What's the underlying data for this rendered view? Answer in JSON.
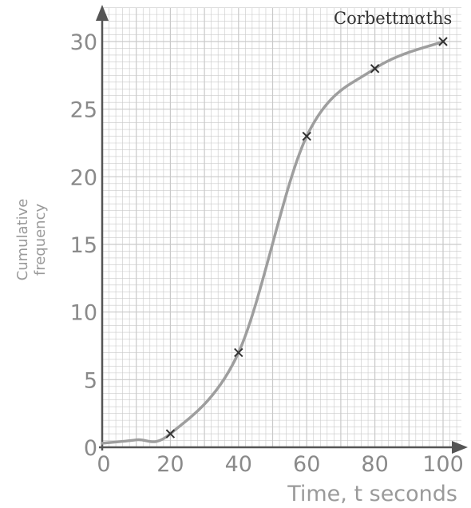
{
  "brand": "Corbettmαths",
  "chart_data": {
    "type": "line",
    "title": "",
    "xlabel": "Time, t seconds",
    "ylabel_line1": "Cumulative",
    "ylabel_line2": "frequency",
    "xlim": [
      0,
      100
    ],
    "ylim": [
      0,
      30
    ],
    "x_ticks": [
      0,
      20,
      40,
      60,
      80,
      100
    ],
    "x_tick_labels": [
      "0",
      "20",
      "40",
      "60",
      "80",
      "100"
    ],
    "y_ticks": [
      0,
      5,
      10,
      15,
      20,
      25,
      30
    ],
    "y_tick_labels": [
      "0",
      "5",
      "10",
      "15",
      "20",
      "25",
      "30"
    ],
    "grid": true,
    "curve": true,
    "points": [
      {
        "x": 20,
        "y": 1
      },
      {
        "x": 40,
        "y": 7
      },
      {
        "x": 60,
        "y": 23
      },
      {
        "x": 80,
        "y": 28
      },
      {
        "x": 100,
        "y": 30
      }
    ],
    "colors": {
      "grid": "#c9c9c9",
      "axis": "#555555",
      "curve": "#9e9e9e",
      "marker": "#333333",
      "text": "#8a8a8a"
    }
  }
}
